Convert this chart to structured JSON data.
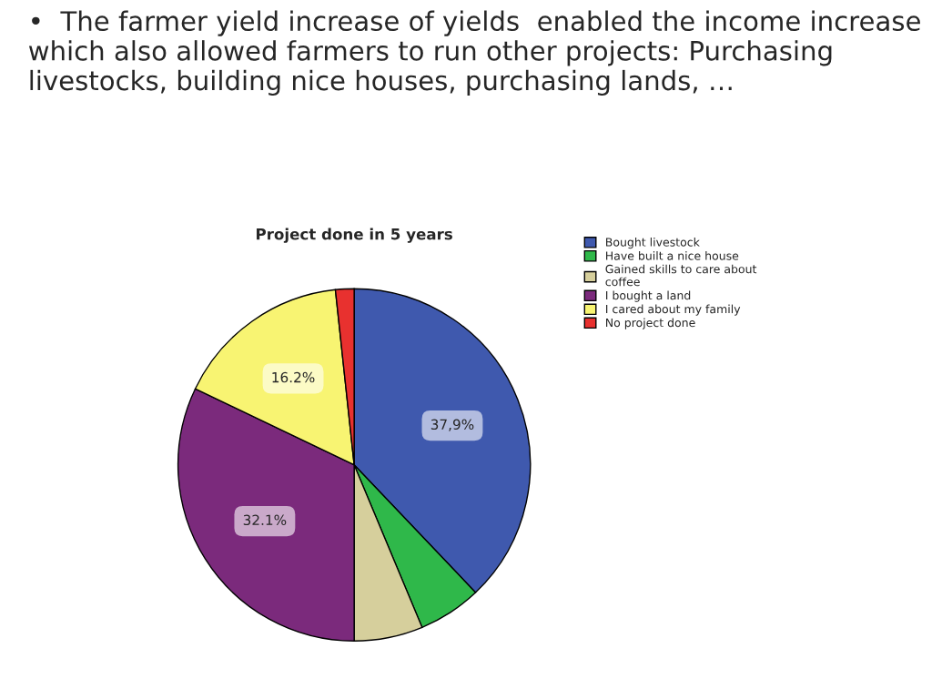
{
  "chart_data": {
    "type": "pie",
    "title": "•  The farmer yield increase of yields  enabled the income increase which also allowed farmers to run other projects: Purchasing livestocks, building nice houses, purchasing lands, …",
    "subtitle": "Project done in 5 years",
    "categories": [
      "Bought livestock",
      "Have built a nice house",
      "Gained skills to care about\ncoffee",
      "I bought a land",
      "I cared about my family",
      "No project done"
    ],
    "values": [
      37.9,
      5.8,
      6.3,
      32.1,
      16.2,
      1.7
    ],
    "value_labels": [
      "37,9%",
      null,
      null,
      "32.1%",
      "16.2%",
      null
    ],
    "colors": [
      "#3f59ae",
      "#2fb84a",
      "#d6cf9c",
      "#7b2a7c",
      "#f8f472",
      "#e8312f"
    ],
    "legend": "top right"
  }
}
